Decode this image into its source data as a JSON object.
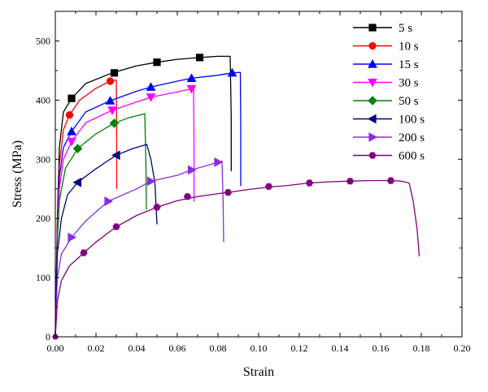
{
  "chart_data": {
    "type": "line",
    "xlabel": "Strain",
    "ylabel": "Stress (MPa)",
    "xlim": [
      0,
      0.2
    ],
    "ylim": [
      0,
      550
    ],
    "x_ticks": [
      0,
      0.02,
      0.04,
      0.06,
      0.08,
      0.1,
      0.12,
      0.14,
      0.16,
      0.18,
      0.2
    ],
    "x_tick_labels": [
      "0.00",
      "0.02",
      "0.04",
      "0.06",
      "0.08",
      "0.10",
      "0.12",
      "0.14",
      "0.16",
      "0.18",
      "0.20"
    ],
    "y_ticks": [
      0,
      100,
      200,
      300,
      400,
      500
    ],
    "y_tick_labels": [
      "0",
      "100",
      "200",
      "300",
      "400",
      "500"
    ],
    "legend_position": "top-right",
    "series": [
      {
        "name": "5 s",
        "color": "#000000",
        "marker": "square",
        "curve": [
          [
            0,
            0
          ],
          [
            0.001,
            200
          ],
          [
            0.002,
            320
          ],
          [
            0.004,
            380
          ],
          [
            0.008,
            403
          ],
          [
            0.015,
            428
          ],
          [
            0.028,
            446
          ],
          [
            0.04,
            458
          ],
          [
            0.05,
            464
          ],
          [
            0.06,
            469
          ],
          [
            0.071,
            472
          ],
          [
            0.08,
            474
          ],
          [
            0.086,
            474
          ],
          [
            0.0865,
            370
          ],
          [
            0.0865,
            280
          ]
        ],
        "markers": [
          [
            0.008,
            403
          ],
          [
            0.029,
            446
          ],
          [
            0.05,
            464
          ],
          [
            0.071,
            472
          ]
        ]
      },
      {
        "name": "10 s",
        "color": "#ff0000",
        "marker": "circle",
        "curve": [
          [
            0,
            0
          ],
          [
            0.001,
            190
          ],
          [
            0.002,
            290
          ],
          [
            0.004,
            350
          ],
          [
            0.007,
            375
          ],
          [
            0.012,
            400
          ],
          [
            0.02,
            420
          ],
          [
            0.027,
            432
          ],
          [
            0.03,
            434
          ],
          [
            0.0302,
            330
          ],
          [
            0.0302,
            250
          ]
        ],
        "markers": [
          [
            0.007,
            375
          ],
          [
            0.027,
            432
          ]
        ]
      },
      {
        "name": "15 s",
        "color": "#0000ff",
        "marker": "triangle-up",
        "curve": [
          [
            0,
            0
          ],
          [
            0.001,
            180
          ],
          [
            0.002,
            270
          ],
          [
            0.004,
            320
          ],
          [
            0.008,
            347
          ],
          [
            0.015,
            380
          ],
          [
            0.027,
            399
          ],
          [
            0.04,
            415
          ],
          [
            0.047,
            422
          ],
          [
            0.06,
            432
          ],
          [
            0.067,
            437
          ],
          [
            0.08,
            442
          ],
          [
            0.087,
            446
          ],
          [
            0.091,
            447
          ],
          [
            0.0912,
            350
          ],
          [
            0.0912,
            255
          ]
        ],
        "markers": [
          [
            0.008,
            347
          ],
          [
            0.027,
            399
          ],
          [
            0.047,
            422
          ],
          [
            0.067,
            437
          ],
          [
            0.087,
            446
          ]
        ]
      },
      {
        "name": "30 s",
        "color": "#ff00ff",
        "marker": "triangle-down",
        "curve": [
          [
            0,
            0
          ],
          [
            0.001,
            170
          ],
          [
            0.002,
            250
          ],
          [
            0.004,
            300
          ],
          [
            0.008,
            330
          ],
          [
            0.015,
            362
          ],
          [
            0.028,
            383
          ],
          [
            0.04,
            397
          ],
          [
            0.047,
            405
          ],
          [
            0.06,
            414
          ],
          [
            0.067,
            419
          ],
          [
            0.068,
            420
          ],
          [
            0.0682,
            330
          ],
          [
            0.0682,
            228
          ]
        ],
        "markers": [
          [
            0.008,
            330
          ],
          [
            0.028,
            383
          ],
          [
            0.047,
            405
          ],
          [
            0.067,
            419
          ]
        ]
      },
      {
        "name": "50 s",
        "color": "#008000",
        "marker": "diamond",
        "curve": [
          [
            0,
            0
          ],
          [
            0.001,
            160
          ],
          [
            0.002,
            230
          ],
          [
            0.005,
            285
          ],
          [
            0.011,
            318
          ],
          [
            0.02,
            343
          ],
          [
            0.029,
            361
          ],
          [
            0.036,
            370
          ],
          [
            0.044,
            377
          ],
          [
            0.0445,
            300
          ],
          [
            0.0448,
            215
          ]
        ],
        "markers": [
          [
            0.011,
            318
          ],
          [
            0.029,
            361
          ]
        ]
      },
      {
        "name": "100 s",
        "color": "#000080",
        "marker": "triangle-left",
        "curve": [
          [
            0,
            0
          ],
          [
            0.001,
            140
          ],
          [
            0.003,
            200
          ],
          [
            0.006,
            240
          ],
          [
            0.011,
            261
          ],
          [
            0.02,
            284
          ],
          [
            0.03,
            307
          ],
          [
            0.038,
            318
          ],
          [
            0.045,
            325
          ],
          [
            0.047,
            300
          ],
          [
            0.049,
            260
          ],
          [
            0.05,
            190
          ]
        ],
        "markers": [
          [
            0.011,
            261
          ],
          [
            0.03,
            307
          ]
        ]
      },
      {
        "name": "200 s",
        "color": "#8a2be2",
        "marker": "triangle-right",
        "curve": [
          [
            0,
            0
          ],
          [
            0.001,
            100
          ],
          [
            0.003,
            140
          ],
          [
            0.008,
            168
          ],
          [
            0.015,
            196
          ],
          [
            0.026,
            229
          ],
          [
            0.04,
            250
          ],
          [
            0.047,
            263
          ],
          [
            0.06,
            273
          ],
          [
            0.067,
            282
          ],
          [
            0.075,
            290
          ],
          [
            0.08,
            295
          ],
          [
            0.082,
            297
          ],
          [
            0.0825,
            230
          ],
          [
            0.0828,
            160
          ]
        ],
        "markers": [
          [
            0.008,
            168
          ],
          [
            0.026,
            229
          ],
          [
            0.047,
            263
          ],
          [
            0.067,
            282
          ],
          [
            0.08,
            295
          ]
        ]
      },
      {
        "name": "600 s",
        "color": "#800080",
        "marker": "hexagon",
        "curve": [
          [
            0,
            0
          ],
          [
            0.001,
            60
          ],
          [
            0.003,
            95
          ],
          [
            0.007,
            120
          ],
          [
            0.014,
            142
          ],
          [
            0.02,
            160
          ],
          [
            0.03,
            186
          ],
          [
            0.04,
            205
          ],
          [
            0.05,
            219
          ],
          [
            0.06,
            230
          ],
          [
            0.07,
            237
          ],
          [
            0.08,
            242
          ],
          [
            0.085,
            244
          ],
          [
            0.095,
            249
          ],
          [
            0.105,
            253
          ],
          [
            0.115,
            256
          ],
          [
            0.125,
            260
          ],
          [
            0.135,
            262
          ],
          [
            0.145,
            263
          ],
          [
            0.155,
            264
          ],
          [
            0.165,
            264
          ],
          [
            0.17,
            263
          ],
          [
            0.174,
            260
          ],
          [
            0.176,
            230
          ],
          [
            0.178,
            180
          ],
          [
            0.179,
            136
          ]
        ],
        "markers": [
          [
            0.014,
            142
          ],
          [
            0.03,
            186
          ],
          [
            0.05,
            219
          ],
          [
            0.065,
            237
          ],
          [
            0.085,
            244
          ],
          [
            0.105,
            254
          ],
          [
            0.125,
            260
          ],
          [
            0.145,
            263
          ],
          [
            0.165,
            264
          ]
        ]
      }
    ]
  }
}
